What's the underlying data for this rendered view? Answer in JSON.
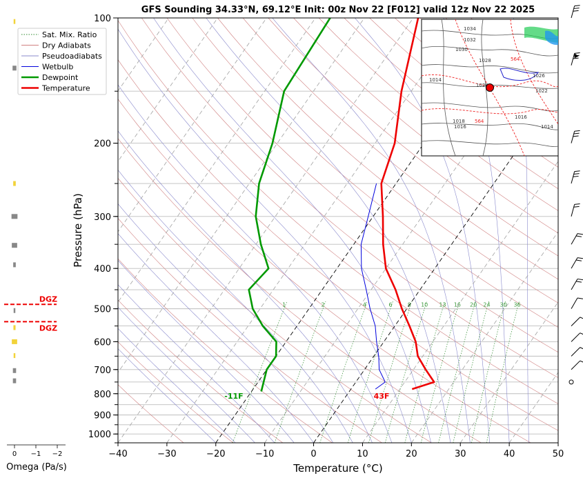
{
  "chart_data": {
    "type": "skew-t",
    "title": "GFS Sounding 34.33°N, 69.12°E Init: 00z Nov 22 [F012] valid 12z Nov 22 2025",
    "xlabel": "Temperature (°C)",
    "ylabel": "Pressure (hPa)",
    "xlim": [
      -40,
      50
    ],
    "ylim": [
      1050,
      100
    ],
    "y_scale": "log",
    "x_ticks": [
      "−40",
      "−30",
      "−20",
      "−10",
      "0",
      "10",
      "20",
      "30",
      "40",
      "50"
    ],
    "x_tick_values": [
      -40,
      -30,
      -20,
      -10,
      0,
      10,
      20,
      30,
      40,
      50
    ],
    "y_ticks": [
      "100",
      "200",
      "300",
      "400",
      "500",
      "600",
      "700",
      "800",
      "900",
      "1000"
    ],
    "y_tick_values": [
      100,
      200,
      300,
      400,
      500,
      600,
      700,
      800,
      900,
      1000
    ],
    "grid": true,
    "legend": {
      "placement": "upper-left",
      "entries": [
        {
          "label": "Sat. Mix. Ratio",
          "color": "#2e8b2e",
          "style": "dotted"
        },
        {
          "label": "Dry Adiabats",
          "color": "#d08080",
          "style": "solid"
        },
        {
          "label": "Pseudoadiabats",
          "color": "#8888cc",
          "style": "solid"
        },
        {
          "label": "Wetbulb",
          "color": "#0000dd",
          "style": "solid"
        },
        {
          "label": "Dewpoint",
          "color": "#009900",
          "style": "solid"
        },
        {
          "label": "Temperature",
          "color": "#ee0000",
          "style": "solid"
        }
      ]
    },
    "series": [
      {
        "name": "Temperature",
        "color": "#ee0000",
        "points": [
          [
            780,
            12.5
          ],
          [
            750,
            16
          ],
          [
            700,
            12.5
          ],
          [
            650,
            9
          ],
          [
            600,
            6.5
          ],
          [
            550,
            3
          ],
          [
            500,
            -1
          ],
          [
            450,
            -5
          ],
          [
            400,
            -10
          ],
          [
            350,
            -14
          ],
          [
            300,
            -18
          ],
          [
            250,
            -23
          ],
          [
            200,
            -26
          ],
          [
            150,
            -32
          ],
          [
            100,
            -39
          ]
        ]
      },
      {
        "name": "Dewpoint",
        "color": "#009900",
        "points": [
          [
            790,
            -18
          ],
          [
            700,
            -20
          ],
          [
            650,
            -20
          ],
          [
            600,
            -22
          ],
          [
            550,
            -27
          ],
          [
            500,
            -31.5
          ],
          [
            450,
            -35
          ],
          [
            400,
            -34
          ],
          [
            350,
            -39
          ],
          [
            300,
            -44
          ],
          [
            250,
            -48
          ],
          [
            200,
            -51
          ],
          [
            150,
            -56
          ],
          [
            100,
            -57
          ]
        ]
      },
      {
        "name": "Wetbulb",
        "color": "#0000dd",
        "points": [
          [
            780,
            5
          ],
          [
            750,
            6
          ],
          [
            700,
            3
          ],
          [
            650,
            1
          ],
          [
            600,
            -1.5
          ],
          [
            550,
            -4
          ],
          [
            500,
            -7.5
          ],
          [
            450,
            -11
          ],
          [
            400,
            -15
          ],
          [
            350,
            -18.5
          ],
          [
            300,
            -21
          ],
          [
            250,
            -24
          ]
        ]
      }
    ],
    "surface_labels": {
      "temperature": "43F",
      "dewpoint": "-11F"
    },
    "mixing_ratio_labels": [
      "1",
      "2",
      "4",
      "6",
      "8",
      "10",
      "13",
      "16",
      "20",
      "24",
      "30",
      "36"
    ],
    "mixing_ratio_values": [
      1,
      2,
      4,
      6,
      8,
      10,
      13,
      16,
      20,
      24,
      30,
      36
    ],
    "omega_panel": {
      "xlabel": "Omega (Pa/s)",
      "ticks": [
        "0",
        "−1",
        "−2"
      ],
      "tick_values": [
        0,
        -1,
        -2
      ],
      "dgz_label": "DGZ",
      "dgz_levels": [
        488,
        537
      ],
      "bars": [
        {
          "p": 102,
          "v": 0.08,
          "color": "#f2d33a"
        },
        {
          "p": 132,
          "v": 0.18,
          "color": "#888888"
        },
        {
          "p": 250,
          "v": 0.12,
          "color": "#f2d33a"
        },
        {
          "p": 300,
          "v": 0.28,
          "color": "#888888"
        },
        {
          "p": 352,
          "v": 0.25,
          "color": "#888888"
        },
        {
          "p": 392,
          "v": 0.12,
          "color": "#888888"
        },
        {
          "p": 505,
          "v": 0.08,
          "color": "#888888"
        },
        {
          "p": 555,
          "v": 0.1,
          "color": "#f2d33a"
        },
        {
          "p": 600,
          "v": 0.25,
          "color": "#f2d33a"
        },
        {
          "p": 648,
          "v": 0.08,
          "color": "#f2d33a"
        },
        {
          "p": 704,
          "v": 0.15,
          "color": "#888888"
        },
        {
          "p": 745,
          "v": 0.15,
          "color": "#888888"
        }
      ]
    },
    "map_labels": [
      "1034",
      "1032",
      "1030",
      "1028",
      "1026",
      "1026",
      "1022",
      "1018",
      "1016",
      "1016",
      "1014",
      "1014",
      "564",
      "564"
    ],
    "wind_barbs": [
      100,
      130,
      200,
      250,
      300,
      350,
      400,
      450,
      500,
      550,
      600,
      650,
      700,
      750
    ]
  }
}
